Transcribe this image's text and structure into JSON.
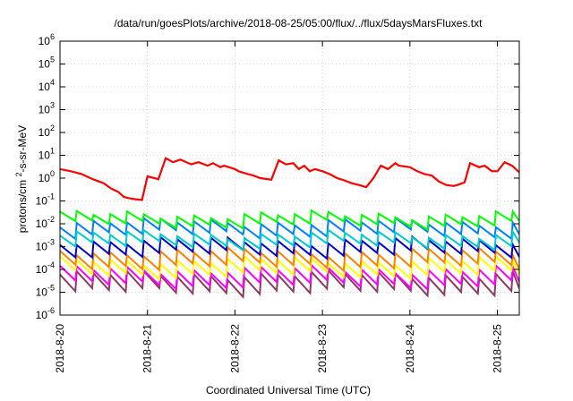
{
  "chart_data": {
    "type": "line",
    "title": "/data/run/goesPlots/archive/2018-08-25/05:00/flux/../flux/5daysMarsFluxes.txt",
    "xlabel": "Coordinated Universal Time (UTC)",
    "ylabel": "protons/cm²-s-sr-MeV",
    "y_scale": "log",
    "ylim": [
      1e-06,
      1000000.0
    ],
    "y_ticks": [
      {
        "value": -6,
        "base": "10",
        "exp": "-6"
      },
      {
        "value": -5,
        "base": "10",
        "exp": "-5"
      },
      {
        "value": -4,
        "base": "10",
        "exp": "-4"
      },
      {
        "value": -3,
        "base": "10",
        "exp": "-3"
      },
      {
        "value": -2,
        "base": "10",
        "exp": "-2"
      },
      {
        "value": -1,
        "base": "10",
        "exp": "-1"
      },
      {
        "value": 0,
        "base": "10",
        "exp": "0"
      },
      {
        "value": 1,
        "base": "10",
        "exp": "1"
      },
      {
        "value": 2,
        "base": "10",
        "exp": "2"
      },
      {
        "value": 3,
        "base": "10",
        "exp": "3"
      },
      {
        "value": 4,
        "base": "10",
        "exp": "4"
      },
      {
        "value": 5,
        "base": "10",
        "exp": "5"
      },
      {
        "value": 6,
        "base": "10",
        "exp": "6"
      }
    ],
    "x_ticks": [
      "2018-8-20",
      "2018-8-21",
      "2018-8-22",
      "2018-8-23",
      "2018-8-24",
      "2018-8-25"
    ],
    "xlim": [
      "2018-08-20 00:00",
      "2018-08-25 06:00"
    ],
    "grid": true,
    "series": [
      {
        "color": "#ff0000",
        "x": [
          "2018-08-20 00:00",
          "2018-08-20 03:00",
          "2018-08-20 06:00",
          "2018-08-20 09:00",
          "2018-08-20 12:00",
          "2018-08-20 14:00",
          "2018-08-20 16:00",
          "2018-08-20 17:00",
          "2018-08-20 17:30",
          "2018-08-20 19:00",
          "2018-08-20 20:30",
          "2018-08-20 22:30",
          "2018-08-21 00:00",
          "2018-08-21 03:00",
          "2018-08-21 05:00",
          "2018-08-21 07:00",
          "2018-08-21 09:00",
          "2018-08-21 12:00",
          "2018-08-21 14:00",
          "2018-08-21 16:30",
          "2018-08-21 18:00",
          "2018-08-21 20:00",
          "2018-08-21 21:00",
          "2018-08-22 00:00",
          "2018-08-22 01:00",
          "2018-08-22 03:00",
          "2018-08-22 05:00",
          "2018-08-22 07:00",
          "2018-08-22 10:00",
          "2018-08-22 12:00",
          "2018-08-22 14:00",
          "2018-08-22 16:00",
          "2018-08-22 17:30",
          "2018-08-22 19:00",
          "2018-08-22 20:30",
          "2018-08-22 22:00",
          "2018-08-23 00:00",
          "2018-08-23 02:00",
          "2018-08-23 04:00",
          "2018-08-23 06:00",
          "2018-08-23 08:00",
          "2018-08-23 10:00",
          "2018-08-23 12:00",
          "2018-08-23 14:00",
          "2018-08-23 16:00",
          "2018-08-23 18:00",
          "2018-08-23 20:00",
          "2018-08-23 21:00",
          "2018-08-24 00:00",
          "2018-08-24 02:00",
          "2018-08-24 04:00",
          "2018-08-24 06:00",
          "2018-08-24 08:00",
          "2018-08-24 10:00",
          "2018-08-24 12:00",
          "2018-08-24 13:00",
          "2018-08-24 15:00",
          "2018-08-24 16:30",
          "2018-08-24 19:00",
          "2018-08-24 20:30",
          "2018-08-24 22:30",
          "2018-08-25 00:00",
          "2018-08-25 02:00",
          "2018-08-25 04:00",
          "2018-08-25 06:00"
        ],
        "y": [
          2.5,
          2.0,
          1.5,
          0.9,
          0.6,
          0.35,
          0.25,
          0.18,
          0.15,
          0.13,
          0.12,
          0.11,
          1.2,
          0.9,
          7.5,
          5.0,
          6.5,
          4.0,
          5.0,
          3.5,
          4.5,
          3.0,
          3.5,
          2.5,
          2.0,
          1.6,
          1.3,
          1.0,
          0.85,
          6.0,
          4.0,
          4.5,
          2.5,
          3.5,
          2.0,
          2.5,
          2.0,
          1.5,
          1.0,
          0.8,
          0.6,
          0.5,
          0.4,
          1.0,
          3.5,
          2.5,
          4.5,
          3.5,
          3.0,
          2.0,
          1.5,
          1.3,
          0.7,
          0.5,
          0.45,
          0.5,
          0.65,
          4.5,
          3.0,
          3.5,
          2.0,
          2.0,
          5.0,
          3.5,
          1.8
        ]
      },
      {
        "color": "#00ff00",
        "base": 0.025,
        "ratio": 2.6
      },
      {
        "color": "#00cccc",
        "base": 0.0035,
        "ratio": 3.0
      },
      {
        "color": "#0080ff",
        "base": 0.012,
        "ratio": 3.2
      },
      {
        "color": "#0000cc",
        "base": 0.0018,
        "ratio": 3.5
      },
      {
        "color": "#ff8000",
        "base": 0.0006,
        "ratio": 4.0
      },
      {
        "color": "#ffff00",
        "base": 0.00025,
        "ratio": 4.0
      },
      {
        "color": "#ff00ff",
        "base": 0.0001,
        "ratio": 4.5
      },
      {
        "color": "#8b3a62",
        "base": 6e-05,
        "ratio": 5.5
      }
    ]
  }
}
